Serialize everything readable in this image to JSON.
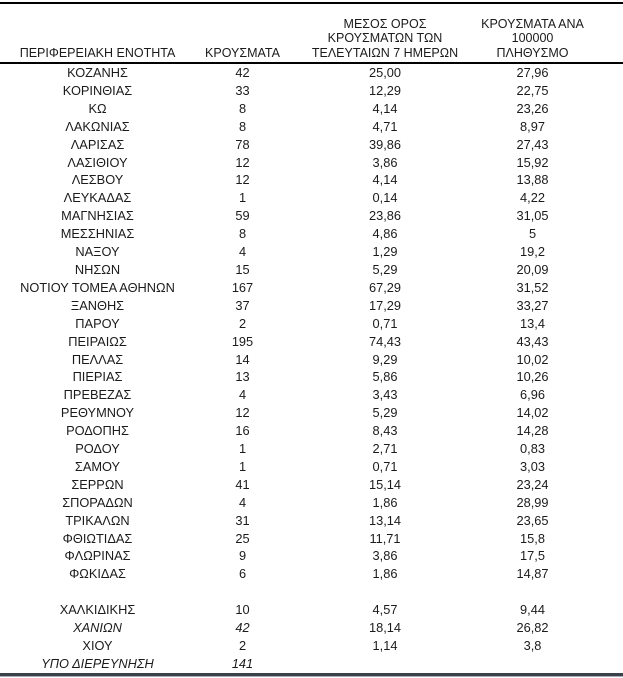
{
  "table": {
    "columns": [
      {
        "label": "ΠΕΡΙΦΕΡΕΙΑΚΗ ΕΝΟΤΗΤΑ"
      },
      {
        "label": "ΚΡΟΥΣΜΑΤΑ"
      },
      {
        "label": "ΜΕΣΟΣ ΟΡΟΣ\nΚΡΟΥΣΜΑΤΩΝ ΤΩΝ\nΤΕΛΕΥΤΑΙΩΝ 7 ΗΜΕΡΩΝ"
      },
      {
        "label": "ΚΡΟΥΣΜΑΤΑ ΑΝΑ\n100000 ΠΛΗΘΥΣΜΟ"
      }
    ],
    "rows": [
      {
        "region": "ΚΟΖΑΝΗΣ",
        "cases": "42",
        "avg7": "25,00",
        "per100k": "27,96"
      },
      {
        "region": "ΚΟΡΙΝΘΙΑΣ",
        "cases": "33",
        "avg7": "12,29",
        "per100k": "22,75"
      },
      {
        "region": "ΚΩ",
        "cases": "8",
        "avg7": "4,14",
        "per100k": "23,26"
      },
      {
        "region": "ΛΑΚΩΝΙΑΣ",
        "cases": "8",
        "avg7": "4,71",
        "per100k": "8,97"
      },
      {
        "region": "ΛΑΡΙΣΑΣ",
        "cases": "78",
        "avg7": "39,86",
        "per100k": "27,43"
      },
      {
        "region": "ΛΑΣΙΘΙΟΥ",
        "cases": "12",
        "avg7": "3,86",
        "per100k": "15,92"
      },
      {
        "region": "ΛΕΣΒΟΥ",
        "cases": "12",
        "avg7": "4,14",
        "per100k": "13,88"
      },
      {
        "region": "ΛΕΥΚΑΔΑΣ",
        "cases": "1",
        "avg7": "0,14",
        "per100k": "4,22"
      },
      {
        "region": "ΜΑΓΝΗΣΙΑΣ",
        "cases": "59",
        "avg7": "23,86",
        "per100k": "31,05"
      },
      {
        "region": "ΜΕΣΣΗΝΙΑΣ",
        "cases": "8",
        "avg7": "4,86",
        "per100k": "5"
      },
      {
        "region": "ΝΑΞΟΥ",
        "cases": "4",
        "avg7": "1,29",
        "per100k": "19,2"
      },
      {
        "region": "ΝΗΣΩΝ",
        "cases": "15",
        "avg7": "5,29",
        "per100k": "20,09"
      },
      {
        "region": "ΝΟΤΙΟΥ ΤΟΜΕΑ ΑΘΗΝΩΝ",
        "cases": "167",
        "avg7": "67,29",
        "per100k": "31,52"
      },
      {
        "region": "ΞΑΝΘΗΣ",
        "cases": "37",
        "avg7": "17,29",
        "per100k": "33,27"
      },
      {
        "region": "ΠΑΡΟΥ",
        "cases": "2",
        "avg7": "0,71",
        "per100k": "13,4"
      },
      {
        "region": "ΠΕΙΡΑΙΩΣ",
        "cases": "195",
        "avg7": "74,43",
        "per100k": "43,43"
      },
      {
        "region": "ΠΕΛΛΑΣ",
        "cases": "14",
        "avg7": "9,29",
        "per100k": "10,02"
      },
      {
        "region": "ΠΙΕΡΙΑΣ",
        "cases": "13",
        "avg7": "5,86",
        "per100k": "10,26"
      },
      {
        "region": "ΠΡΕΒΕΖΑΣ",
        "cases": "4",
        "avg7": "3,43",
        "per100k": "6,96"
      },
      {
        "region": "ΡΕΘΥΜΝΟΥ",
        "cases": "12",
        "avg7": "5,29",
        "per100k": "14,02"
      },
      {
        "region": "ΡΟΔΟΠΗΣ",
        "cases": "16",
        "avg7": "8,43",
        "per100k": "14,28"
      },
      {
        "region": "ΡΟΔΟΥ",
        "cases": "1",
        "avg7": "2,71",
        "per100k": "0,83"
      },
      {
        "region": "ΣΑΜΟΥ",
        "cases": "1",
        "avg7": "0,71",
        "per100k": "3,03"
      },
      {
        "region": "ΣΕΡΡΩΝ",
        "cases": "41",
        "avg7": "15,14",
        "per100k": "23,24"
      },
      {
        "region": "ΣΠΟΡΑΔΩΝ",
        "cases": "4",
        "avg7": "1,86",
        "per100k": "28,99"
      },
      {
        "region": "ΤΡΙΚΑΛΩΝ",
        "cases": "31",
        "avg7": "13,14",
        "per100k": "23,65"
      },
      {
        "region": "ΦΘΙΩΤΙΔΑΣ",
        "cases": "25",
        "avg7": "11,71",
        "per100k": "15,8"
      },
      {
        "region": "ΦΛΩΡΙΝΑΣ",
        "cases": "9",
        "avg7": "3,86",
        "per100k": "17,5"
      },
      {
        "region": "ΦΩΚΙΔΑΣ",
        "cases": "6",
        "avg7": "1,86",
        "per100k": "14,87"
      },
      {
        "spacer": true,
        "region": "",
        "cases": "",
        "avg7": "",
        "per100k": ""
      },
      {
        "region": "ΧΑΛΚΙΔΙΚΗΣ",
        "cases": "10",
        "avg7": "4,57",
        "per100k": "9,44"
      },
      {
        "region": "ΧΑΝΙΩΝ",
        "cases": "42",
        "avg7": "18,14",
        "per100k": "26,82",
        "italic": [
          "region",
          "cases"
        ]
      },
      {
        "region": "ΧΙΟΥ",
        "cases": "2",
        "avg7": "1,14",
        "per100k": "3,8"
      },
      {
        "region": "ΥΠΟ ΔΙΕΡΕΥΝΗΣΗ",
        "cases": "141",
        "avg7": "",
        "per100k": "",
        "italic": [
          "region",
          "cases"
        ]
      }
    ],
    "colors": {
      "text": "#1b1b1b",
      "rule": "#000000",
      "bottom_bar": "#3a414b"
    }
  }
}
